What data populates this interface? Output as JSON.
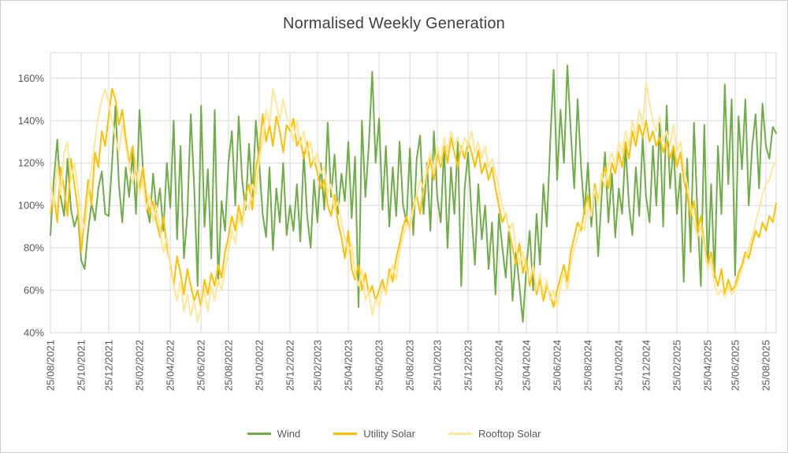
{
  "chart_data": {
    "type": "line",
    "title": "Normalised Weekly Generation",
    "xlabel": "",
    "ylabel": "",
    "x_interval": "weekly",
    "x_start_date": "25/08/2021",
    "grid": true,
    "legend_position": "bottom",
    "ylim": [
      40,
      172
    ],
    "y_tick_values": [
      40,
      60,
      80,
      100,
      120,
      140,
      160
    ],
    "y_tick_labels": [
      "40%",
      "60%",
      "80%",
      "100%",
      "120%",
      "140%",
      "160%"
    ],
    "x_tick_labels": [
      "25/08/2021",
      "25/10/2021",
      "25/12/2021",
      "25/02/2022",
      "25/04/2022",
      "25/06/2022",
      "25/08/2022",
      "25/10/2022",
      "25/12/2022",
      "25/02/2023",
      "25/04/2023",
      "25/06/2023",
      "25/08/2023",
      "25/10/2023",
      "25/12/2023",
      "25/02/2024",
      "25/04/2024",
      "25/06/2024",
      "25/08/2024",
      "25/10/2024",
      "25/12/2024",
      "25/02/2025",
      "25/04/2025",
      "25/06/2025",
      "25/08/2025"
    ],
    "x_tick_indices": [
      0,
      9,
      17,
      26,
      35,
      44,
      52,
      61,
      70,
      78,
      87,
      96,
      105,
      113,
      122,
      131,
      139,
      148,
      157,
      166,
      174,
      183,
      192,
      200,
      209
    ],
    "series": [
      {
        "name": "Wind",
        "color": "#70AD47",
        "values": [
          86,
          112,
          131,
          104,
          95,
          122,
          98,
          90,
          96,
          74,
          70,
          88,
          101,
          93,
          108,
          116,
          96,
          95,
          120,
          147,
          110,
          92,
          118,
          104,
          125,
          96,
          145,
          118,
          100,
          92,
          115,
          97,
          108,
          88,
          120,
          99,
          140,
          84,
          128,
          75,
          96,
          143,
          108,
          62,
          147,
          90,
          117,
          75,
          145,
          63,
          102,
          88,
          120,
          135,
          100,
          142,
          112,
          98,
          129,
          104,
          140,
          120,
          96,
          85,
          118,
          79,
          108,
          92,
          120,
          86,
          100,
          88,
          110,
          83,
          125,
          95,
          80,
          112,
          92,
          120,
          98,
          139,
          104,
          124,
          96,
          115,
          102,
          130,
          94,
          123,
          52,
          140,
          104,
          128,
          163,
          120,
          141,
          98,
          128,
          90,
          118,
          95,
          130,
          100,
          92,
          127,
          86,
          122,
          133,
          96,
          120,
          88,
          135,
          104,
          92,
          128,
          80,
          118,
          96,
          130,
          62,
          108,
          125,
          96,
          72,
          110,
          84,
          100,
          70,
          92,
          58,
          96,
          80,
          66,
          90,
          55,
          78,
          62,
          45,
          70,
          88,
          60,
          96,
          72,
          110,
          90,
          130,
          164,
          112,
          145,
          120,
          166,
          135,
          108,
          150,
          118,
          96,
          120,
          90,
          110,
          76,
          104,
          125,
          92,
          115,
          85,
          108,
          96,
          128,
          100,
          86,
          118,
          95,
          132,
          104,
          92,
          128,
          100,
          140,
          90,
          147,
          108,
          128,
          96,
          115,
          64,
          122,
          78,
          139,
          96,
          62,
          138,
          70,
          110,
          66,
          128,
          96,
          157,
          110,
          150,
          67,
          142,
          117,
          150,
          100,
          128,
          143,
          108,
          148,
          128,
          122,
          137,
          134
        ]
      },
      {
        "name": "Utility Solar",
        "color": "#FFC000",
        "values": [
          96,
          105,
          92,
          118,
          108,
          95,
          122,
          110,
          98,
          78,
          95,
          112,
          100,
          125,
          118,
          135,
          128,
          142,
          155,
          150,
          138,
          145,
          132,
          120,
          128,
          115,
          108,
          118,
          105,
          96,
          102,
          92,
          85,
          95,
          80,
          72,
          62,
          76,
          68,
          58,
          70,
          62,
          55,
          60,
          52,
          65,
          58,
          68,
          62,
          72,
          66,
          78,
          85,
          95,
          88,
          100,
          92,
          105,
          110,
          98,
          118,
          125,
          143,
          130,
          138,
          128,
          142,
          135,
          125,
          138,
          135,
          141,
          128,
          132,
          122,
          130,
          118,
          122,
          115,
          108,
          112,
          100,
          95,
          105,
          92,
          85,
          75,
          88,
          70,
          65,
          72,
          60,
          68,
          58,
          62,
          55,
          60,
          65,
          58,
          70,
          64,
          75,
          82,
          90,
          95,
          88,
          100,
          105,
          96,
          108,
          115,
          122,
          112,
          125,
          118,
          128,
          120,
          132,
          125,
          118,
          128,
          122,
          130,
          125,
          118,
          126,
          115,
          120,
          112,
          118,
          108,
          100,
          92,
          96,
          88,
          80,
          72,
          82,
          68,
          75,
          62,
          70,
          58,
          65,
          55,
          62,
          58,
          52,
          60,
          66,
          72,
          64,
          78,
          85,
          92,
          88,
          98,
          105,
          95,
          110,
          102,
          112,
          118,
          108,
          120,
          115,
          125,
          118,
          130,
          122,
          135,
          128,
          138,
          132,
          140,
          130,
          135,
          128,
          132,
          125,
          130,
          122,
          128,
          118,
          125,
          112,
          105,
          95,
          102,
          88,
          95,
          82,
          72,
          78,
          68,
          62,
          70,
          58,
          65,
          60,
          62,
          68,
          72,
          78,
          75,
          82,
          88,
          85,
          92,
          88,
          95,
          92,
          101
        ]
      },
      {
        "name": "Rooftop Solar",
        "color": "#FFE699",
        "values": [
          112,
          100,
          120,
          105,
          125,
          130,
          112,
          120,
          108,
          95,
          88,
          105,
          118,
          130,
          142,
          150,
          155,
          148,
          140,
          132,
          125,
          138,
          128,
          118,
          110,
          120,
          105,
          112,
          98,
          105,
          92,
          100,
          88,
          78,
          85,
          70,
          62,
          55,
          65,
          50,
          58,
          48,
          55,
          45,
          52,
          60,
          50,
          62,
          55,
          65,
          60,
          70,
          78,
          88,
          82,
          95,
          90,
          102,
          98,
          110,
          105,
          122,
          130,
          145,
          138,
          155,
          148,
          140,
          150,
          142,
          138,
          130,
          140,
          128,
          135,
          125,
          130,
          120,
          125,
          115,
          118,
          105,
          110,
          98,
          102,
          92,
          85,
          78,
          82,
          68,
          62,
          70,
          55,
          60,
          48,
          56,
          52,
          62,
          58,
          66,
          72,
          65,
          78,
          85,
          92,
          88,
          98,
          105,
          112,
          108,
          118,
          125,
          115,
          128,
          120,
          132,
          125,
          135,
          128,
          132,
          125,
          132,
          128,
          135,
          125,
          130,
          122,
          128,
          118,
          122,
          115,
          108,
          100,
          95,
          88,
          92,
          80,
          72,
          78,
          70,
          65,
          72,
          60,
          68,
          58,
          65,
          55,
          60,
          52,
          62,
          68,
          60,
          72,
          80,
          85,
          92,
          88,
          100,
          95,
          108,
          100,
          115,
          108,
          120,
          125,
          118,
          130,
          125,
          135,
          128,
          140,
          132,
          145,
          138,
          158,
          148,
          140,
          135,
          142,
          130,
          135,
          128,
          138,
          125,
          130,
          118,
          110,
          100,
          92,
          85,
          90,
          80,
          70,
          75,
          62,
          58,
          60,
          57,
          62,
          58,
          60,
          65,
          70,
          75,
          80,
          85,
          92,
          98,
          105,
          110,
          112,
          118,
          121
        ]
      }
    ],
    "grid_color": "#d9d9d9",
    "axis_text_color": "#595959"
  }
}
